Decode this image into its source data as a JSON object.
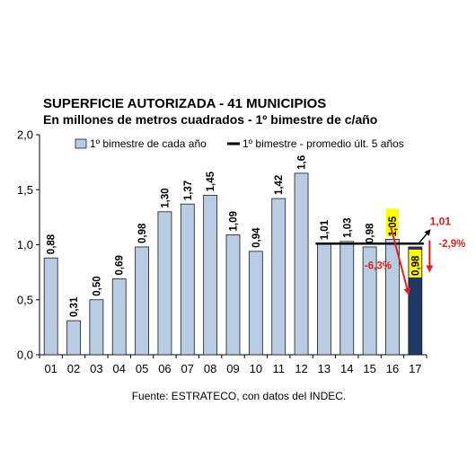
{
  "chart_data": {
    "type": "bar",
    "title": "SUPERFICIE AUTORIZADA - 41 MUNICIPIOS",
    "subtitle": "En millones de metros cuadrados - 1º bimestre de c/año",
    "categories": [
      "01",
      "02",
      "03",
      "04",
      "05",
      "06",
      "07",
      "08",
      "09",
      "10",
      "11",
      "12",
      "13",
      "14",
      "15",
      "16",
      "17"
    ],
    "series": [
      {
        "name": "1º bimestre de cada año",
        "values": [
          0.88,
          0.31,
          0.5,
          0.69,
          0.98,
          1.3,
          1.37,
          1.45,
          1.09,
          0.94,
          1.42,
          1.65,
          1.01,
          1.03,
          0.98,
          1.05,
          0.98
        ],
        "labels": [
          "0,88",
          "0,31",
          "0,50",
          "0,69",
          "0,98",
          "1,30",
          "1,37",
          "1,45",
          "1,09",
          "0,94",
          "1,42",
          "1,6",
          "1,01",
          "1,03",
          "0,98",
          "1,05",
          "0,98"
        ],
        "color": "#b8cce4",
        "highlight_color": "#1f3864"
      }
    ],
    "line": {
      "name": "1º bimestre - promedio últ. 5 años",
      "value": 1.01,
      "from": "13",
      "to": "17",
      "color": "#000000"
    },
    "ylim": [
      0,
      2.0
    ],
    "yticks": [
      "0,0",
      "0,5",
      "1,0",
      "1,5",
      "2,0"
    ],
    "ytick_values": [
      0,
      0.5,
      1.0,
      1.5,
      2.0
    ],
    "annotations": {
      "pct_left": "-6,3%",
      "pct_right": "-2,9%",
      "avg_label": "1,01",
      "accent_color": "#e0201b",
      "highlight_box_color": "#ffff00"
    },
    "legend_position": "top",
    "grid": false,
    "source": "Fuente: ESTRATECO, con datos del INDEC."
  }
}
